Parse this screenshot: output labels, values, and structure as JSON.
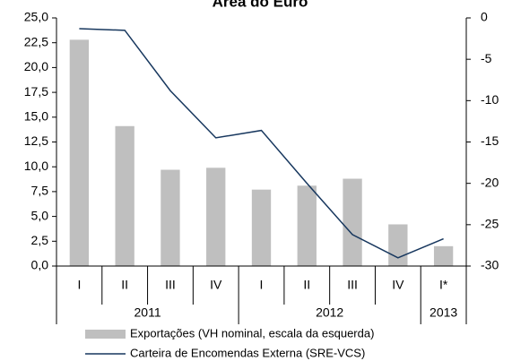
{
  "chart_data": {
    "type": "bar_line",
    "title": "Área do Euro",
    "categories": [
      "I",
      "II",
      "III",
      "IV",
      "I",
      "II",
      "III",
      "IV",
      "I*"
    ],
    "groups": [
      {
        "label": "2011",
        "count": 4
      },
      {
        "label": "2012",
        "count": 4
      },
      {
        "label": "2013",
        "count": 1
      }
    ],
    "series": [
      {
        "name": "Exportações (VH nominal, escala da esquerda)",
        "type": "bar",
        "color": "#bfbfbf",
        "values": [
          22.8,
          14.1,
          9.7,
          9.9,
          7.7,
          8.1,
          8.8,
          4.2,
          2.0
        ]
      },
      {
        "name": "Carteira de Encomendas Externa (SRE-VCS)",
        "type": "line",
        "axis": "y2",
        "color": "#17375e",
        "values": [
          -1.3,
          -1.5,
          -8.8,
          -14.5,
          -13.6,
          -20,
          -26.2,
          -29,
          -26.7
        ]
      }
    ],
    "ylim": [
      0,
      25
    ],
    "yticks": [
      {
        "value": 0,
        "label": "0,0"
      },
      {
        "value": 2.5,
        "label": "2,5"
      },
      {
        "value": 5,
        "label": "5,0"
      },
      {
        "value": 7.5,
        "label": "7,5"
      },
      {
        "value": 10,
        "label": "10,0"
      },
      {
        "value": 12.5,
        "label": "12,5"
      },
      {
        "value": 15,
        "label": "15,0"
      },
      {
        "value": 17.5,
        "label": "17,5"
      },
      {
        "value": 20,
        "label": "20,0"
      },
      {
        "value": 22.5,
        "label": "22,5"
      },
      {
        "value": 25,
        "label": "25,0"
      }
    ],
    "y2lim": [
      -30,
      0
    ],
    "y2ticks": [
      0,
      -5,
      -10,
      -15,
      -20,
      -25,
      -30
    ]
  }
}
